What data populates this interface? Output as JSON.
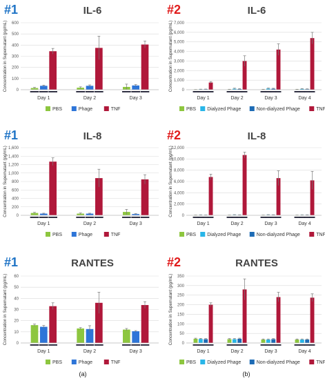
{
  "chart_data": [
    {
      "type": "bar",
      "panel_number": "#1",
      "panel_number_color": "#1f74c6",
      "title": "IL-6",
      "ylabel": "Concentration in Supernatant (pg/mL)",
      "categories": [
        "Day 1",
        "Day 2",
        "Day 3"
      ],
      "ylim": [
        0,
        600
      ],
      "ticks": [
        0,
        100,
        200,
        300,
        400,
        500,
        600
      ],
      "series": [
        {
          "name": "PBS",
          "color": "#8dc63f",
          "values": [
            15,
            18,
            25
          ],
          "errors": [
            6,
            8,
            25
          ]
        },
        {
          "name": "Phage",
          "color": "#2e75d8",
          "values": [
            35,
            35,
            38
          ],
          "errors": [
            6,
            8,
            8
          ]
        },
        {
          "name": "TNF",
          "color": "#b0183a",
          "values": [
            345,
            375,
            405
          ],
          "errors": [
            25,
            105,
            30
          ]
        }
      ],
      "grid": true,
      "legend": "bottom"
    },
    {
      "type": "bar",
      "panel_number": "#2",
      "panel_number_color": "#e01b1b",
      "title": "IL-6",
      "ylabel": "Concentration in Supernatant (pg/mL)",
      "categories": [
        "Day 1",
        "Day 2",
        "Day 3",
        "Day 4"
      ],
      "ylim": [
        0,
        7000
      ],
      "ticks": [
        0,
        1000,
        2000,
        3000,
        4000,
        5000,
        6000,
        7000
      ],
      "tick_labels": [
        "0",
        "1,000",
        "2,000",
        "3,000",
        "4,000",
        "5,000",
        "6,000",
        "7,000"
      ],
      "series": [
        {
          "name": "PBS",
          "color": "#8dc63f",
          "values": [
            20,
            30,
            30,
            30
          ],
          "errors": [
            10,
            20,
            20,
            20
          ]
        },
        {
          "name": "Dialyzed Phage",
          "color": "#29b6e8",
          "values": [
            40,
            100,
            120,
            80
          ],
          "errors": [
            20,
            60,
            60,
            40
          ]
        },
        {
          "name": "Non-dialyzed Phage",
          "color": "#1d6bb5",
          "values": [
            50,
            70,
            100,
            60
          ],
          "errors": [
            20,
            40,
            50,
            30
          ]
        },
        {
          "name": "TNF",
          "color": "#b0183a",
          "values": [
            750,
            3000,
            4200,
            5400
          ],
          "errors": [
            100,
            550,
            600,
            600
          ]
        }
      ],
      "grid": true,
      "legend": "bottom"
    },
    {
      "type": "bar",
      "panel_number": "#1",
      "panel_number_color": "#1f74c6",
      "title": "IL-8",
      "ylabel": "Concentration in Supernatant (pg/mL)",
      "categories": [
        "Day 1",
        "Day 2",
        "Day 3"
      ],
      "ylim": [
        0,
        1600
      ],
      "ticks": [
        0,
        200,
        400,
        600,
        800,
        1000,
        1200,
        1400,
        1600
      ],
      "tick_labels": [
        "0",
        "200",
        "400",
        "600",
        "800",
        "1,000",
        "1,200",
        "1,400",
        "1,600"
      ],
      "series": [
        {
          "name": "PBS",
          "color": "#8dc63f",
          "values": [
            55,
            40,
            80
          ],
          "errors": [
            15,
            15,
            60
          ]
        },
        {
          "name": "Phage",
          "color": "#2e75d8",
          "values": [
            40,
            40,
            30
          ],
          "errors": [
            10,
            10,
            10
          ]
        },
        {
          "name": "TNF",
          "color": "#b0183a",
          "values": [
            1270,
            880,
            850
          ],
          "errors": [
            90,
            210,
            110
          ]
        }
      ],
      "grid": true,
      "legend": "bottom"
    },
    {
      "type": "bar",
      "panel_number": "#2",
      "panel_number_color": "#e01b1b",
      "title": "IL-8",
      "ylabel": "Concentration in Supernatant (pg/mL)",
      "categories": [
        "Day 1",
        "Day 2",
        "Day 3",
        "Day 4"
      ],
      "ylim": [
        0,
        12000
      ],
      "ticks": [
        0,
        2000,
        4000,
        6000,
        8000,
        10000,
        12000
      ],
      "tick_labels": [
        "0",
        "2,000",
        "4,000",
        "6,000",
        "8,000",
        "10,000",
        "12,000"
      ],
      "series": [
        {
          "name": "PBS",
          "color": "#8dc63f",
          "values": [
            40,
            40,
            40,
            40
          ],
          "errors": [
            20,
            20,
            20,
            20
          ]
        },
        {
          "name": "Dialyzed Phage",
          "color": "#29b6e8",
          "values": [
            60,
            80,
            80,
            60
          ],
          "errors": [
            30,
            40,
            40,
            30
          ]
        },
        {
          "name": "Non-dialyzed Phage",
          "color": "#1d6bb5",
          "values": [
            50,
            60,
            70,
            60
          ],
          "errors": [
            20,
            30,
            30,
            30
          ]
        },
        {
          "name": "TNF",
          "color": "#b0183a",
          "values": [
            6800,
            10700,
            6600,
            6200
          ],
          "errors": [
            500,
            500,
            1300,
            1600
          ]
        }
      ],
      "grid": true,
      "legend": "bottom"
    },
    {
      "type": "bar",
      "panel_number": "#1",
      "panel_number_color": "#1f74c6",
      "title": "RANTES",
      "ylabel": "Concentration in Supernatant (pg/mL)",
      "categories": [
        "Day 1",
        "Day 2",
        "Day 3"
      ],
      "ylim": [
        0,
        60
      ],
      "ticks": [
        0,
        10,
        20,
        30,
        40,
        50,
        60
      ],
      "series": [
        {
          "name": "PBS",
          "color": "#8dc63f",
          "values": [
            16,
            13,
            12
          ],
          "errors": [
            1,
            0.8,
            1
          ]
        },
        {
          "name": "Phage",
          "color": "#2e75d8",
          "values": [
            14.5,
            12.5,
            10.5
          ],
          "errors": [
            1.2,
            3,
            0.6
          ]
        },
        {
          "name": "TNF",
          "color": "#b0183a",
          "values": [
            33,
            36,
            34
          ],
          "errors": [
            3,
            9.5,
            3
          ]
        }
      ],
      "grid": true,
      "legend": "bottom"
    },
    {
      "type": "bar",
      "panel_number": "#2",
      "panel_number_color": "#e01b1b",
      "title": "RANTES",
      "ylabel": "Concentration in Supernatant (pg/mL)",
      "categories": [
        "Day 1",
        "Day 2",
        "Day 3",
        "Day 4"
      ],
      "ylim": [
        0,
        350
      ],
      "ticks": [
        0,
        50,
        100,
        150,
        200,
        250,
        300,
        350
      ],
      "series": [
        {
          "name": "PBS",
          "color": "#8dc63f",
          "values": [
            22,
            20,
            18,
            18
          ],
          "errors": [
            3,
            3,
            3,
            3
          ]
        },
        {
          "name": "Dialyzed Phage",
          "color": "#29b6e8",
          "values": [
            21,
            20,
            18,
            18
          ],
          "errors": [
            3,
            3,
            3,
            3
          ]
        },
        {
          "name": "Non-dialyzed Phage",
          "color": "#1d6bb5",
          "values": [
            20,
            22,
            20,
            18
          ],
          "errors": [
            3,
            3,
            3,
            3
          ]
        },
        {
          "name": "TNF",
          "color": "#b0183a",
          "values": [
            200,
            280,
            240,
            237
          ],
          "errors": [
            10,
            55,
            25,
            20
          ]
        }
      ],
      "grid": true,
      "legend": "bottom"
    }
  ],
  "captions": [
    "(a)",
    "(b)"
  ]
}
